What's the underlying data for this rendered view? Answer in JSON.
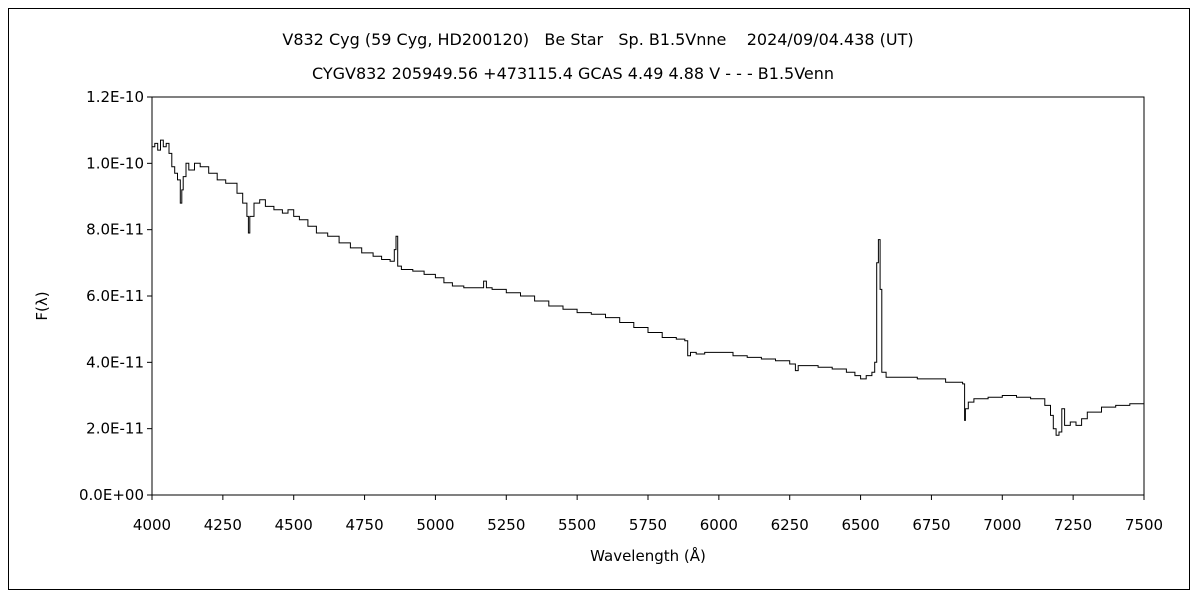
{
  "chart_data": {
    "type": "line",
    "title": "V832 Cyg (59 Cyg, HD200120)   Be Star   Sp. B1.5Vnne    2024/09/04.438 (UT)",
    "subtitle": "CYGV832 205949.56 +473115.4 GCAS 4.49 4.88 V - - - B1.5Venn",
    "xlabel": "Wavelength (Å)",
    "ylabel": "F(λ)",
    "xlim": [
      4000,
      7500
    ],
    "ylim": [
      0,
      1.2e-10
    ],
    "grid": false,
    "x_ticks": [
      4000,
      4250,
      4500,
      4750,
      5000,
      5250,
      5500,
      5750,
      6000,
      6250,
      6500,
      6750,
      7000,
      7250,
      7500
    ],
    "y_ticks": [
      "0.0E+00",
      "2.0E-11",
      "4.0E-11",
      "6.0E-11",
      "8.0E-11",
      "1.0E-10",
      "1.2E-10"
    ],
    "y_tick_values": [
      0,
      2e-11,
      4e-11,
      6e-11,
      8e-11,
      1e-10,
      1.2e-10
    ],
    "line_color": "#000000",
    "series": [
      {
        "x": [
          4000,
          4010,
          4020,
          4030,
          4040,
          4050,
          4060,
          4070,
          4080,
          4090,
          4100,
          4105,
          4110,
          4120,
          4130,
          4150,
          4170,
          4200,
          4230,
          4260,
          4300,
          4320,
          4335,
          4340,
          4345,
          4360,
          4380,
          4400,
          4430,
          4460,
          4480,
          4500,
          4520,
          4550,
          4580,
          4620,
          4660,
          4700,
          4740,
          4780,
          4810,
          4840,
          4855,
          4861,
          4867,
          4880,
          4920,
          4960,
          5000,
          5030,
          5060,
          5100,
          5150,
          5170,
          5180,
          5200,
          5250,
          5300,
          5350,
          5400,
          5450,
          5500,
          5550,
          5600,
          5650,
          5700,
          5750,
          5800,
          5850,
          5880,
          5890,
          5900,
          5920,
          5950,
          6000,
          6050,
          6100,
          6150,
          6200,
          6250,
          6270,
          6280,
          6300,
          6350,
          6400,
          6450,
          6480,
          6500,
          6520,
          6540,
          6550,
          6557,
          6563,
          6569,
          6575,
          6590,
          6620,
          6700,
          6800,
          6860,
          6867,
          6870,
          6880,
          6900,
          6950,
          7000,
          7050,
          7100,
          7150,
          7170,
          7180,
          7190,
          7200,
          7210,
          7220,
          7240,
          7260,
          7280,
          7300,
          7350,
          7400,
          7450,
          7500
        ],
        "y": [
          1.05e-10,
          1.06e-10,
          1.04e-10,
          1.07e-10,
          1.05e-10,
          1.06e-10,
          1.03e-10,
          9.9e-11,
          9.7e-11,
          9.5e-11,
          8.8e-11,
          9.2e-11,
          9.6e-11,
          1e-10,
          9.8e-11,
          1e-10,
          9.9e-11,
          9.7e-11,
          9.5e-11,
          9.4e-11,
          9.1e-11,
          8.8e-11,
          8.4e-11,
          7.9e-11,
          8.4e-11,
          8.8e-11,
          8.9e-11,
          8.7e-11,
          8.6e-11,
          8.5e-11,
          8.6e-11,
          8.4e-11,
          8.3e-11,
          8.1e-11,
          7.9e-11,
          7.8e-11,
          7.6e-11,
          7.45e-11,
          7.3e-11,
          7.2e-11,
          7.1e-11,
          7.05e-11,
          7.4e-11,
          7.8e-11,
          6.9e-11,
          6.8e-11,
          6.75e-11,
          6.65e-11,
          6.55e-11,
          6.4e-11,
          6.3e-11,
          6.25e-11,
          6.25e-11,
          6.45e-11,
          6.25e-11,
          6.2e-11,
          6.1e-11,
          6e-11,
          5.85e-11,
          5.7e-11,
          5.6e-11,
          5.5e-11,
          5.45e-11,
          5.35e-11,
          5.2e-11,
          5.05e-11,
          4.9e-11,
          4.75e-11,
          4.7e-11,
          4.65e-11,
          4.2e-11,
          4.3e-11,
          4.25e-11,
          4.3e-11,
          4.3e-11,
          4.2e-11,
          4.15e-11,
          4.1e-11,
          4.05e-11,
          3.95e-11,
          3.75e-11,
          3.9e-11,
          3.9e-11,
          3.85e-11,
          3.8e-11,
          3.7e-11,
          3.6e-11,
          3.5e-11,
          3.6e-11,
          3.7e-11,
          4e-11,
          7e-11,
          7.7e-11,
          6.2e-11,
          3.7e-11,
          3.55e-11,
          3.55e-11,
          3.5e-11,
          3.4e-11,
          3.35e-11,
          2.25e-11,
          2.6e-11,
          2.8e-11,
          2.9e-11,
          2.95e-11,
          3e-11,
          2.95e-11,
          2.9e-11,
          2.7e-11,
          2.4e-11,
          2e-11,
          1.8e-11,
          1.9e-11,
          2.6e-11,
          2.1e-11,
          2.2e-11,
          2.1e-11,
          2.3e-11,
          2.5e-11,
          2.65e-11,
          2.7e-11,
          2.75e-11,
          2.8e-11
        ]
      }
    ]
  }
}
